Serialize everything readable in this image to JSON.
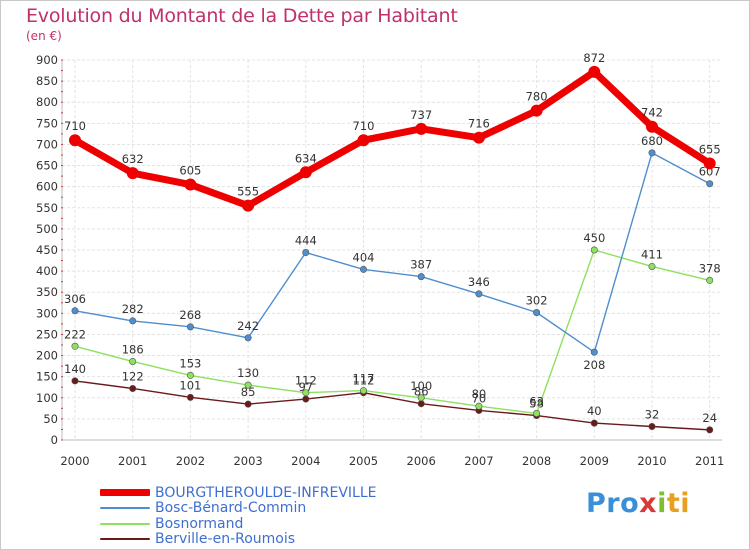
{
  "title": "Evolution du Montant de la Dette par Habitant",
  "subtitle": "(en €)",
  "logo": {
    "text": "Proxiti",
    "colors": [
      "#3a8fd8",
      "#e8a020",
      "#7cc030",
      "#d83a3a"
    ]
  },
  "chart_data": {
    "type": "line",
    "categories": [
      "2000",
      "2001",
      "2002",
      "2003",
      "2004",
      "2005",
      "2006",
      "2007",
      "2008",
      "2009",
      "2010",
      "2011"
    ],
    "ylim": [
      0,
      900
    ],
    "yticks": [
      0,
      50,
      100,
      150,
      200,
      250,
      300,
      350,
      400,
      450,
      500,
      550,
      600,
      650,
      700,
      750,
      800,
      850,
      900
    ],
    "grid": true,
    "legend_position": "bottom-left",
    "series": [
      {
        "name": "BOURGTHEROULDE-INFREVILLE",
        "color": "#ee0000",
        "values": [
          710,
          632,
          605,
          555,
          634,
          710,
          737,
          716,
          780,
          872,
          742,
          655
        ]
      },
      {
        "name": "Bosc-Bénard-Commin",
        "color": "#4f8fcf",
        "values": [
          306,
          282,
          268,
          242,
          444,
          404,
          387,
          346,
          302,
          208,
          680,
          607
        ]
      },
      {
        "name": "Bosnormand",
        "color": "#8ee060",
        "values": [
          222,
          186,
          153,
          130,
          112,
          117,
          100,
          80,
          63,
          450,
          411,
          378
        ]
      },
      {
        "name": "Berville-en-Roumois",
        "color": "#6b1a1a",
        "values": [
          140,
          122,
          101,
          85,
          97,
          112,
          86,
          70,
          58,
          40,
          32,
          24
        ]
      }
    ]
  }
}
